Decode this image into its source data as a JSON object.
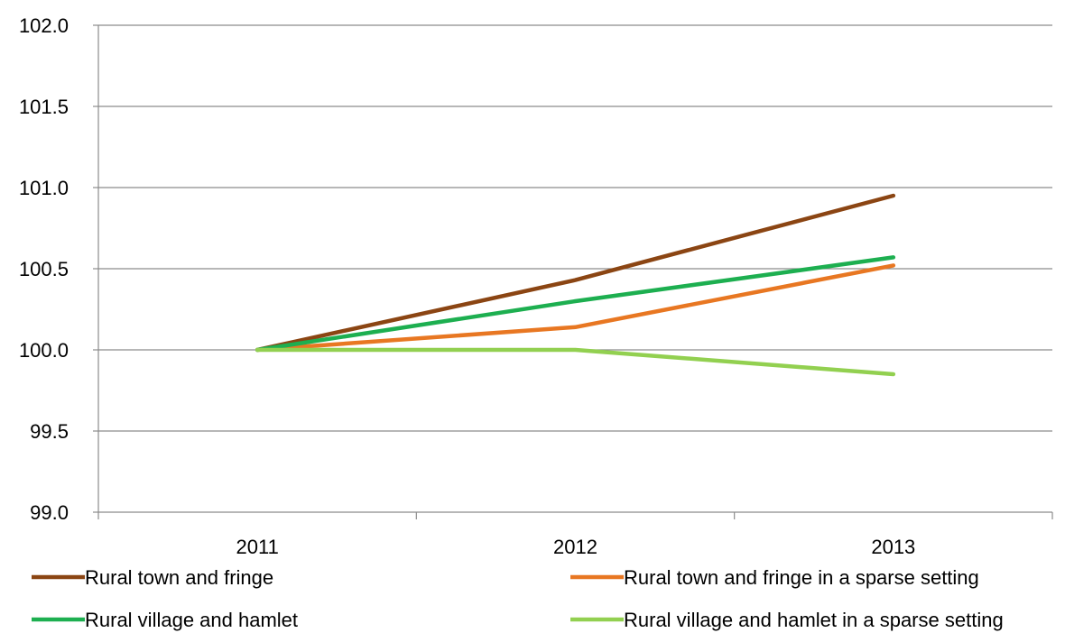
{
  "chart_data": {
    "type": "line",
    "categories": [
      "2011",
      "2012",
      "2013"
    ],
    "ylim": [
      99.0,
      102.0
    ],
    "yticks": [
      "99.0",
      "99.5",
      "100.0",
      "100.5",
      "101.0",
      "101.5",
      "102.0"
    ],
    "ytick_values": [
      99.0,
      99.5,
      100.0,
      100.5,
      101.0,
      101.5,
      102.0
    ],
    "grid": "horizontal",
    "legend_position": "bottom",
    "series": [
      {
        "name": "Rural town and fringe",
        "color": "#8B4513",
        "values": [
          100.0,
          100.43,
          100.95
        ]
      },
      {
        "name": "Rural town and fringe in a sparse setting",
        "color": "#E87722",
        "values": [
          100.0,
          100.14,
          100.52
        ]
      },
      {
        "name": "Rural village and hamlet",
        "color": "#1DAF50",
        "values": [
          100.0,
          100.3,
          100.57
        ]
      },
      {
        "name": "Rural village and hamlet in a sparse setting",
        "color": "#92D050",
        "values": [
          100.0,
          100.0,
          99.85
        ]
      }
    ]
  }
}
